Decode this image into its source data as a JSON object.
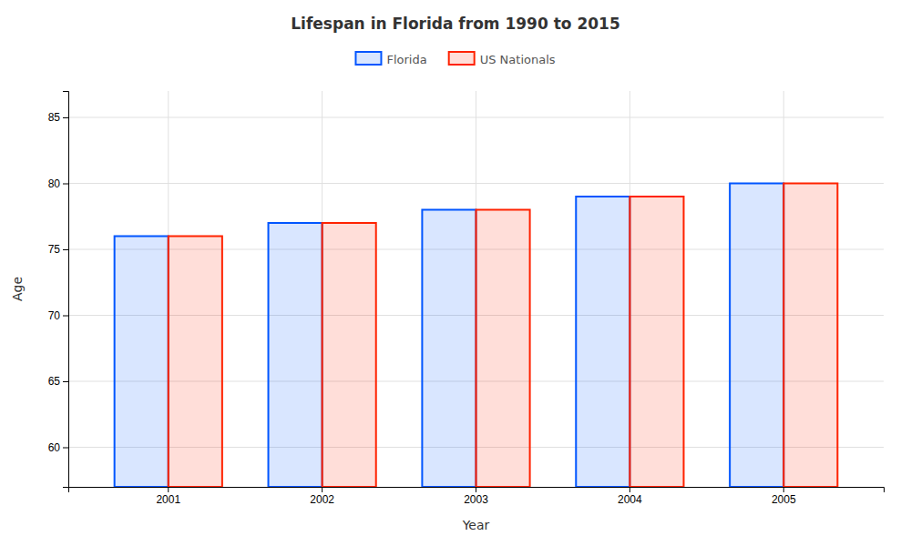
{
  "chart_data": {
    "type": "bar",
    "title": "Lifespan in Florida from 1990 to 2015",
    "xlabel": "Year",
    "ylabel": "Age",
    "categories": [
      "2001",
      "2002",
      "2003",
      "2004",
      "2005"
    ],
    "series": [
      {
        "name": "Florida",
        "color": "#0055ff",
        "values": [
          76,
          77,
          78,
          79,
          80
        ]
      },
      {
        "name": "US Nationals",
        "color": "#ff2200",
        "values": [
          76,
          77,
          78,
          79,
          80
        ]
      }
    ],
    "ylim": [
      57,
      87
    ],
    "yticks": [
      60,
      65,
      70,
      75,
      80,
      85
    ],
    "grid": true,
    "legend": "top"
  }
}
